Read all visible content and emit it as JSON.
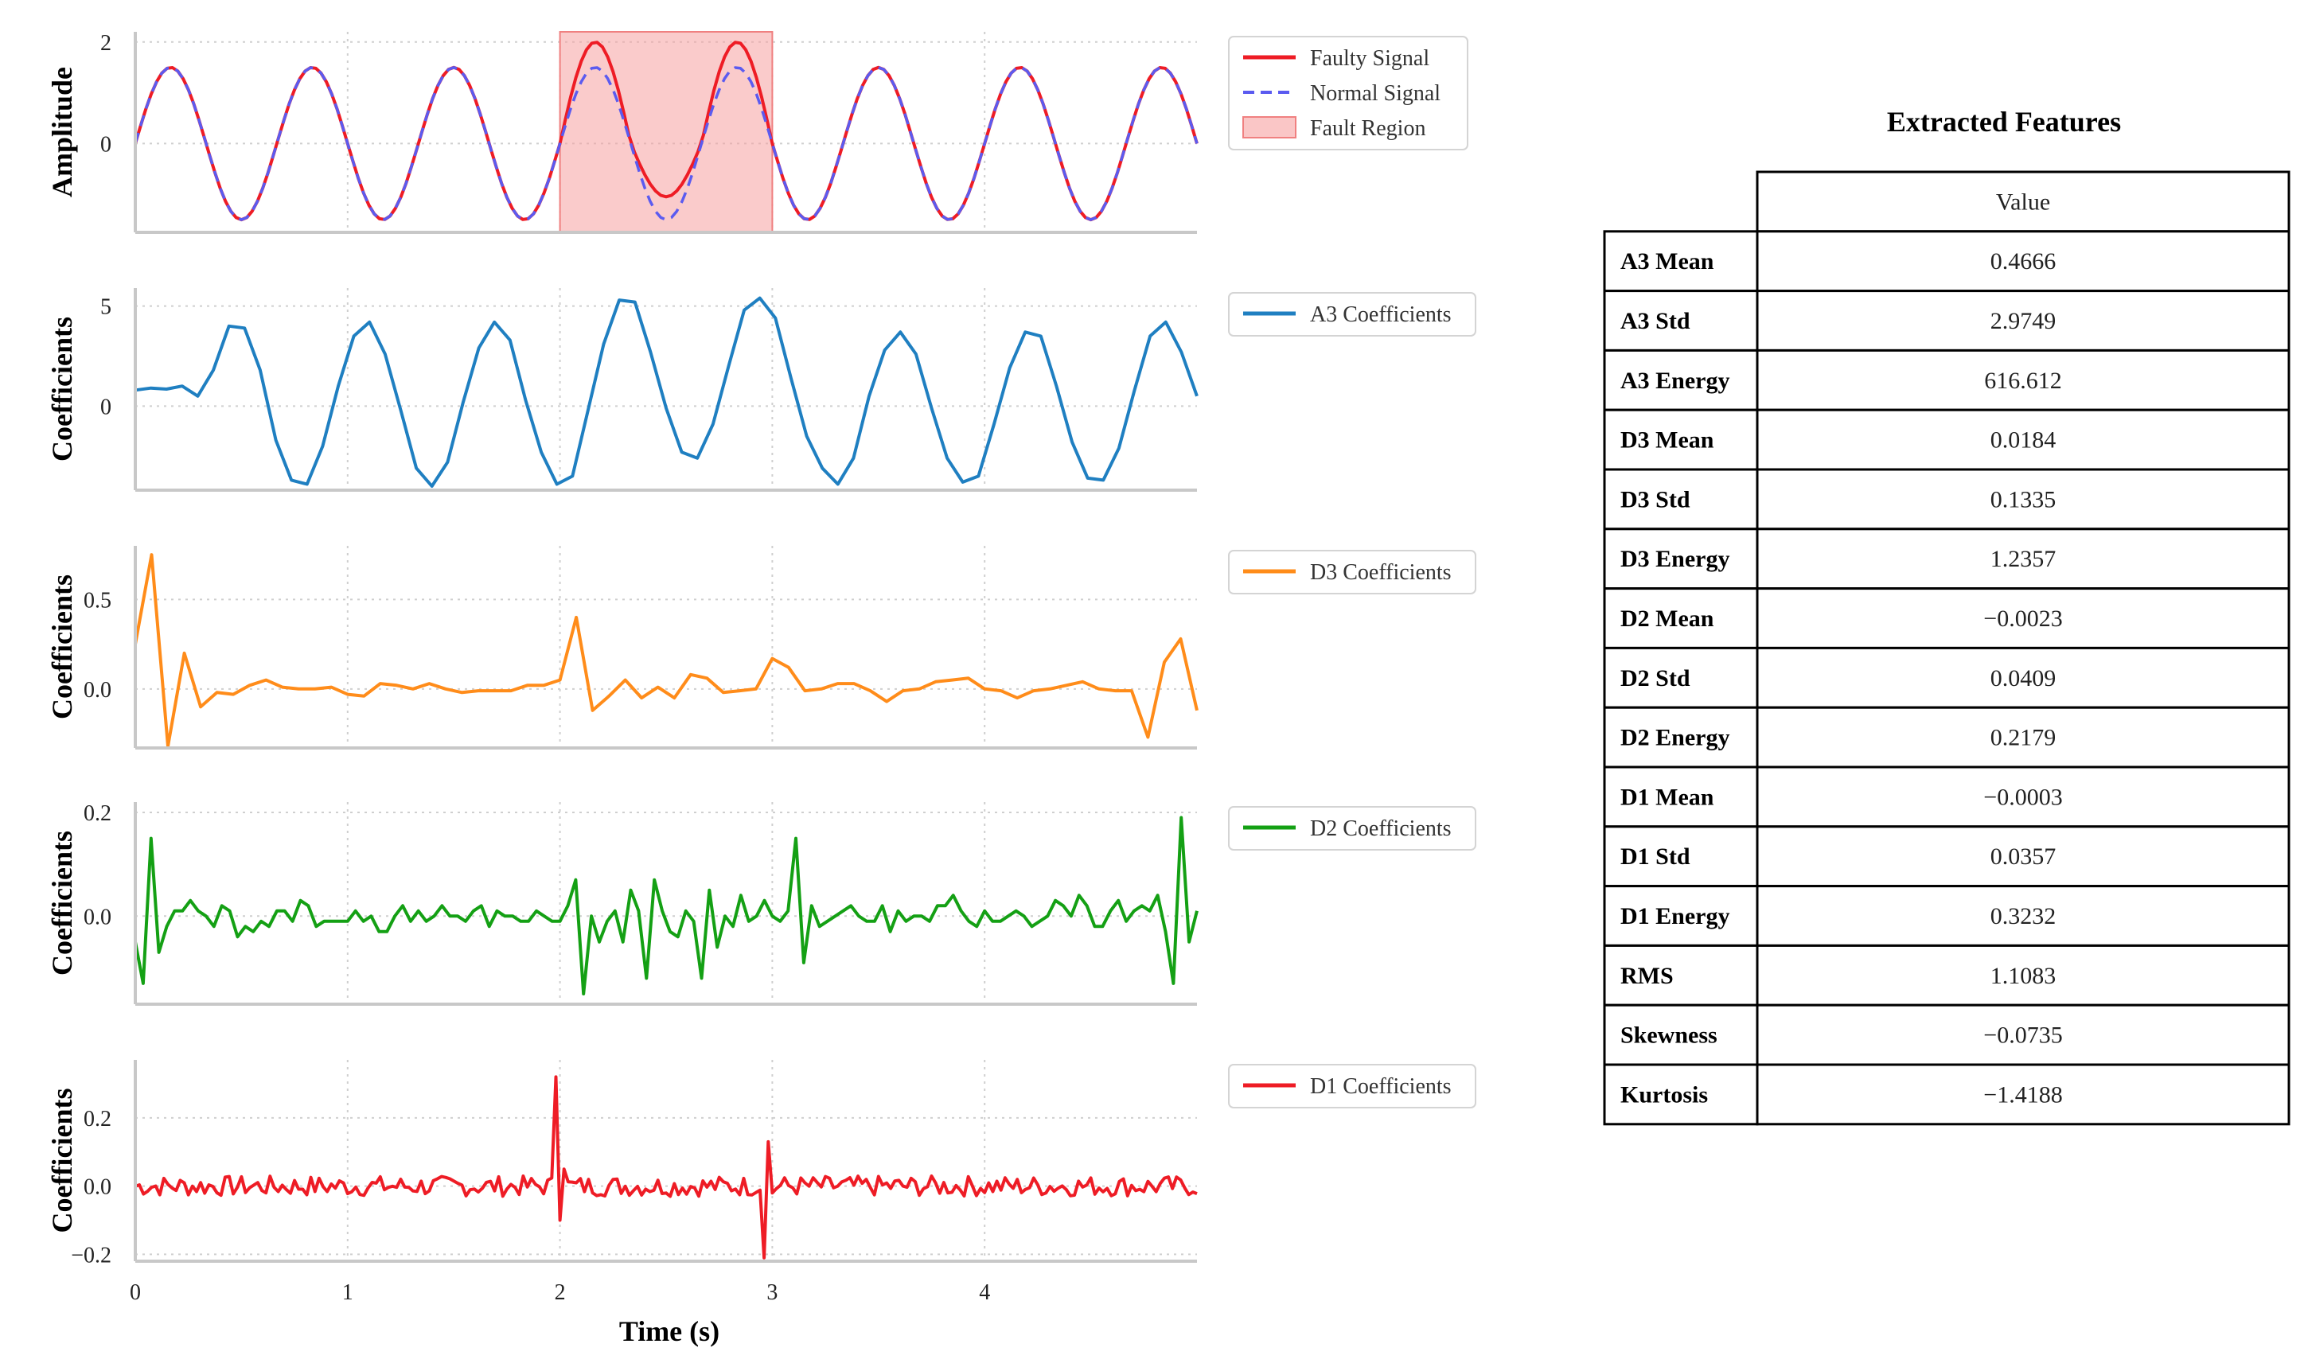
{
  "chart_data": [
    {
      "type": "line",
      "ylabel": "Amplitude",
      "x_range": [
        0,
        5
      ],
      "ylim": [
        -1.75,
        2.2
      ],
      "yticks": [
        0,
        2
      ],
      "series": [
        {
          "name": "Faulty Signal",
          "color": "#ee1c25",
          "style": "solid",
          "formula": "1.5*sin(2*pi*1.5*t), amplified to 2.0 peak / -1.05 trough in fault region",
          "samples": 200
        },
        {
          "name": "Normal Signal",
          "color": "#5b5bf0",
          "style": "dashed",
          "formula": "1.5*sin(2*pi*1.5*t)",
          "samples": 200
        }
      ],
      "fault_region": {
        "name": "Fault Region",
        "x_start": 2,
        "x_end": 3,
        "color": "#f6a0a0"
      },
      "legend": [
        "Faulty Signal",
        "Normal Signal",
        "Fault Region"
      ]
    },
    {
      "type": "line",
      "ylabel": "Coefficients",
      "x_range": [
        0,
        5
      ],
      "ylim": [
        -4.2,
        5.9
      ],
      "yticks": [
        0,
        5
      ],
      "series": [
        {
          "name": "A3 Coefficients",
          "color": "#1f7fc1",
          "values": [
            0.8,
            0.9,
            0.85,
            1.0,
            0.5,
            1.8,
            4.0,
            3.9,
            1.8,
            -1.7,
            -3.7,
            -3.9,
            -2.0,
            1.0,
            3.5,
            4.2,
            2.6,
            -0.2,
            -3.1,
            -4.0,
            -2.8,
            0.2,
            2.9,
            4.2,
            3.3,
            0.3,
            -2.3,
            -3.9,
            -3.5,
            -0.2,
            3.1,
            5.3,
            5.2,
            2.7,
            -0.1,
            -2.3,
            -2.6,
            -0.9,
            2.0,
            4.8,
            5.4,
            4.4,
            1.4,
            -1.5,
            -3.1,
            -3.9,
            -2.6,
            0.5,
            2.8,
            3.7,
            2.6,
            -0.1,
            -2.6,
            -3.8,
            -3.5,
            -0.9,
            1.9,
            3.7,
            3.5,
            1.0,
            -1.8,
            -3.6,
            -3.7,
            -2.1,
            0.8,
            3.5,
            4.2,
            2.7,
            0.5
          ]
        }
      ],
      "legend": [
        "A3 Coefficients"
      ]
    },
    {
      "type": "line",
      "ylabel": "Coefficients",
      "x_range": [
        0,
        5
      ],
      "ylim": [
        -0.33,
        0.8
      ],
      "yticks": [
        0.0,
        0.5
      ],
      "ytick_labels": [
        "0.0",
        "0.5"
      ],
      "series": [
        {
          "name": "D3 Coefficients",
          "color": "#ff8c1a",
          "values": [
            0.25,
            0.75,
            -0.32,
            0.2,
            -0.1,
            -0.02,
            -0.03,
            0.02,
            0.05,
            0.01,
            0.0,
            0.0,
            0.01,
            -0.03,
            -0.04,
            0.03,
            0.02,
            0.0,
            0.03,
            0.0,
            -0.02,
            -0.01,
            -0.01,
            -0.01,
            0.02,
            0.02,
            0.05,
            0.4,
            -0.12,
            -0.04,
            0.05,
            -0.05,
            0.01,
            -0.05,
            0.08,
            0.06,
            -0.02,
            -0.01,
            0.0,
            0.17,
            0.12,
            -0.01,
            0.0,
            0.03,
            0.03,
            -0.01,
            -0.07,
            -0.01,
            0.0,
            0.04,
            0.05,
            0.06,
            0.0,
            -0.01,
            -0.05,
            -0.01,
            0.0,
            0.02,
            0.04,
            0.0,
            -0.01,
            -0.01,
            -0.27,
            0.15,
            0.28,
            -0.12
          ]
        }
      ],
      "legend": [
        "D3 Coefficients"
      ]
    },
    {
      "type": "line",
      "ylabel": "Coefficients",
      "x_range": [
        0,
        5
      ],
      "ylim": [
        -0.17,
        0.22
      ],
      "yticks": [
        0.0,
        0.2
      ],
      "ytick_labels": [
        "0.0",
        "0.2"
      ],
      "series": [
        {
          "name": "D2 Coefficients",
          "color": "#14a014",
          "values": [
            -0.05,
            -0.13,
            0.15,
            -0.07,
            -0.02,
            0.01,
            0.01,
            0.03,
            0.01,
            0.0,
            -0.02,
            0.02,
            0.01,
            -0.04,
            -0.02,
            -0.03,
            -0.01,
            -0.02,
            0.01,
            0.01,
            -0.01,
            0.03,
            0.02,
            -0.02,
            -0.01,
            -0.01,
            -0.01,
            -0.01,
            0.01,
            -0.01,
            0.0,
            -0.03,
            -0.03,
            0.0,
            0.02,
            -0.01,
            0.01,
            -0.01,
            0.0,
            0.02,
            0.0,
            0.0,
            -0.01,
            0.01,
            0.02,
            -0.02,
            0.01,
            0.0,
            0.0,
            -0.01,
            -0.01,
            0.01,
            0.0,
            -0.01,
            -0.01,
            0.02,
            0.07,
            -0.15,
            0.0,
            -0.05,
            -0.01,
            0.01,
            -0.05,
            0.05,
            0.01,
            -0.12,
            0.07,
            0.01,
            -0.03,
            -0.04,
            0.01,
            -0.01,
            -0.12,
            0.05,
            -0.06,
            0.0,
            -0.02,
            0.04,
            -0.01,
            0.0,
            0.03,
            0.0,
            -0.01,
            0.01,
            0.15,
            -0.09,
            0.02,
            -0.02,
            -0.01,
            0.0,
            0.01,
            0.02,
            0.0,
            -0.01,
            -0.01,
            0.02,
            -0.03,
            0.01,
            -0.01,
            0.0,
            0.0,
            -0.01,
            0.02,
            0.02,
            0.04,
            0.01,
            -0.01,
            -0.02,
            0.01,
            -0.01,
            -0.01,
            0.0,
            0.01,
            0.0,
            -0.02,
            -0.01,
            0.0,
            0.03,
            0.02,
            0.0,
            0.04,
            0.02,
            -0.02,
            -0.02,
            0.01,
            0.03,
            -0.01,
            0.01,
            0.02,
            0.01,
            0.04,
            -0.03,
            -0.13,
            0.19,
            -0.05,
            0.01
          ]
        }
      ],
      "legend": [
        "D2 Coefficients"
      ]
    },
    {
      "type": "line",
      "ylabel": "Coefficients",
      "x_range": [
        0,
        5
      ],
      "xticks": [
        0,
        1,
        2,
        3,
        4
      ],
      "xlabel": "Time (s)",
      "ylim": [
        -0.22,
        0.37
      ],
      "yticks": [
        -0.2,
        0.0,
        0.2
      ],
      "ytick_labels": [
        "-0.2",
        "0.0",
        "0.2"
      ],
      "series": [
        {
          "name": "D1 Coefficients",
          "color": "#ee1c25",
          "formula": "small noise (+/-0.03) with spikes +0.32/-0.10 at t=2 and +0.13/-0.21 at t=3",
          "samples": 260
        }
      ],
      "legend": [
        "D1 Coefficients"
      ]
    }
  ],
  "table": {
    "title": "Extracted Features",
    "header": "Value",
    "rows": [
      {
        "name": "A3 Mean",
        "value": "0.4666"
      },
      {
        "name": "A3 Std",
        "value": "2.9749"
      },
      {
        "name": "A3 Energy",
        "value": "616.612"
      },
      {
        "name": "D3 Mean",
        "value": "0.0184"
      },
      {
        "name": "D3 Std",
        "value": "0.1335"
      },
      {
        "name": "D3 Energy",
        "value": "1.2357"
      },
      {
        "name": "D2 Mean",
        "value": "−0.0023"
      },
      {
        "name": "D2 Std",
        "value": "0.0409"
      },
      {
        "name": "D2 Energy",
        "value": "0.2179"
      },
      {
        "name": "D1 Mean",
        "value": "−0.0003"
      },
      {
        "name": "D1 Std",
        "value": "0.0357"
      },
      {
        "name": "D1 Energy",
        "value": "0.3232"
      },
      {
        "name": "RMS",
        "value": "1.1083"
      },
      {
        "name": "Skewness",
        "value": "−0.0735"
      },
      {
        "name": "Kurtosis",
        "value": "−1.4188"
      }
    ]
  }
}
